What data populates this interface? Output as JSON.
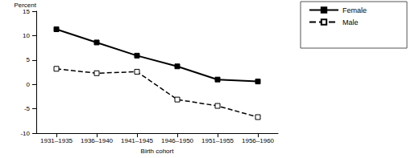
{
  "chart_data": {
    "type": "line",
    "categories": [
      "1931–1935",
      "1936–1940",
      "1941–1945",
      "1946–1950",
      "1951–1955",
      "1956–1960"
    ],
    "series": [
      {
        "name": "Female",
        "color": "#000000",
        "marker": "square",
        "line_style": "solid",
        "values": [
          11.3,
          8.6,
          5.9,
          3.7,
          1.0,
          0.6
        ]
      },
      {
        "name": "Male",
        "color": "#000000",
        "marker": "open square",
        "line_style": "dashed",
        "values": [
          3.2,
          2.3,
          2.6,
          -3.1,
          -4.4,
          -6.7
        ]
      }
    ],
    "x_label": "Birth cohort",
    "y_label": "Percent",
    "ylim": [
      -10,
      15
    ],
    "yticks": [
      -10,
      -5,
      0,
      5,
      10,
      15
    ],
    "grid": false,
    "legend": "right"
  }
}
